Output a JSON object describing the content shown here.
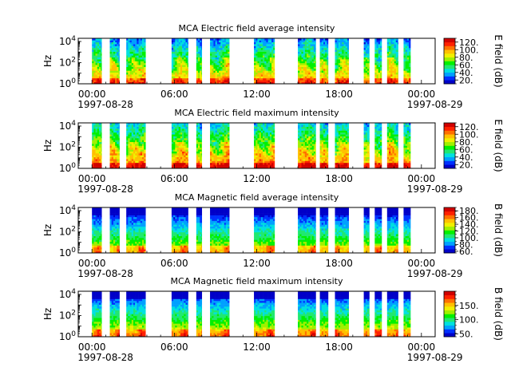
{
  "colorscale": [
    "#0000c8",
    "#0030ff",
    "#00a0ff",
    "#00e0e0",
    "#20e870",
    "#00f000",
    "#a0f000",
    "#f0f000",
    "#ffc000",
    "#ff7000",
    "#ff2000",
    "#d00000"
  ],
  "chart_data": [
    {
      "type": "heatmap",
      "title": "MCA  Electric field average intensity",
      "ylabel": "Hz",
      "y_ticks": [
        "10^0",
        "10^2",
        "10^4"
      ],
      "ylim_hz": [
        1,
        20000
      ],
      "x_ticks": [
        "00:00",
        "06:00",
        "12:00",
        "18:00",
        "00:00"
      ],
      "x_dates": [
        "1997-08-28",
        "1997-08-29"
      ],
      "xlim_hours": [
        -1,
        25
      ],
      "colorbar_label": "E field (dB)",
      "colorbar_ticks": [
        "20.",
        "40.",
        "60.",
        "80.",
        "100.",
        "120."
      ],
      "clim": [
        10,
        130
      ],
      "spectrum": "e_avg"
    },
    {
      "type": "heatmap",
      "title": "MCA  Electric field maximum intensity",
      "ylabel": "Hz",
      "y_ticks": [
        "10^0",
        "10^2",
        "10^4"
      ],
      "ylim_hz": [
        1,
        20000
      ],
      "x_ticks": [
        "00:00",
        "06:00",
        "12:00",
        "18:00",
        "00:00"
      ],
      "x_dates": [
        "1997-08-28",
        "1997-08-29"
      ],
      "xlim_hours": [
        -1,
        25
      ],
      "colorbar_label": "E field (dB)",
      "colorbar_ticks": [
        "20.",
        "40.",
        "60.",
        "80.",
        "100.",
        "120."
      ],
      "clim": [
        10,
        130
      ],
      "spectrum": "e_max"
    },
    {
      "type": "heatmap",
      "title": "MCA  Magnetic field average intensity",
      "ylabel": "Hz",
      "y_ticks": [
        "10^0",
        "10^2",
        "10^4"
      ],
      "ylim_hz": [
        1,
        20000
      ],
      "x_ticks": [
        "00:00",
        "06:00",
        "12:00",
        "18:00",
        "00:00"
      ],
      "x_dates": [
        "1997-08-28",
        "1997-08-29"
      ],
      "xlim_hours": [
        -1,
        25
      ],
      "colorbar_label": "B field (dB)",
      "colorbar_ticks": [
        "60.",
        "80.",
        "100.",
        "120.",
        "140.",
        "160.",
        "180."
      ],
      "clim": [
        55,
        190
      ],
      "spectrum": "b_avg"
    },
    {
      "type": "heatmap",
      "title": "MCA  Magnetic field maximum intensity",
      "ylabel": "Hz",
      "y_ticks": [
        "10^0",
        "10^2",
        "10^4"
      ],
      "ylim_hz": [
        1,
        20000
      ],
      "x_ticks": [
        "00:00",
        "06:00",
        "12:00",
        "18:00",
        "00:00"
      ],
      "x_dates": [
        "1997-08-28",
        "1997-08-29"
      ],
      "xlim_hours": [
        -1,
        25
      ],
      "colorbar_label": "B field (dB)",
      "colorbar_ticks": [
        "50.",
        "100.",
        "150."
      ],
      "clim": [
        40,
        200
      ],
      "spectrum": "b_max"
    }
  ],
  "data_intervals_hours": [
    [
      0.0,
      0.7
    ],
    [
      1.3,
      2.0
    ],
    [
      2.5,
      3.9
    ],
    [
      5.8,
      7.0
    ],
    [
      7.6,
      8.0
    ],
    [
      8.6,
      10.0
    ],
    [
      11.8,
      13.3
    ],
    [
      15.0,
      16.3
    ],
    [
      16.6,
      17.2
    ],
    [
      17.7,
      18.7
    ],
    [
      19.8,
      20.2
    ],
    [
      20.6,
      21.1
    ],
    [
      21.5,
      22.3
    ],
    [
      22.7,
      23.2
    ]
  ]
}
